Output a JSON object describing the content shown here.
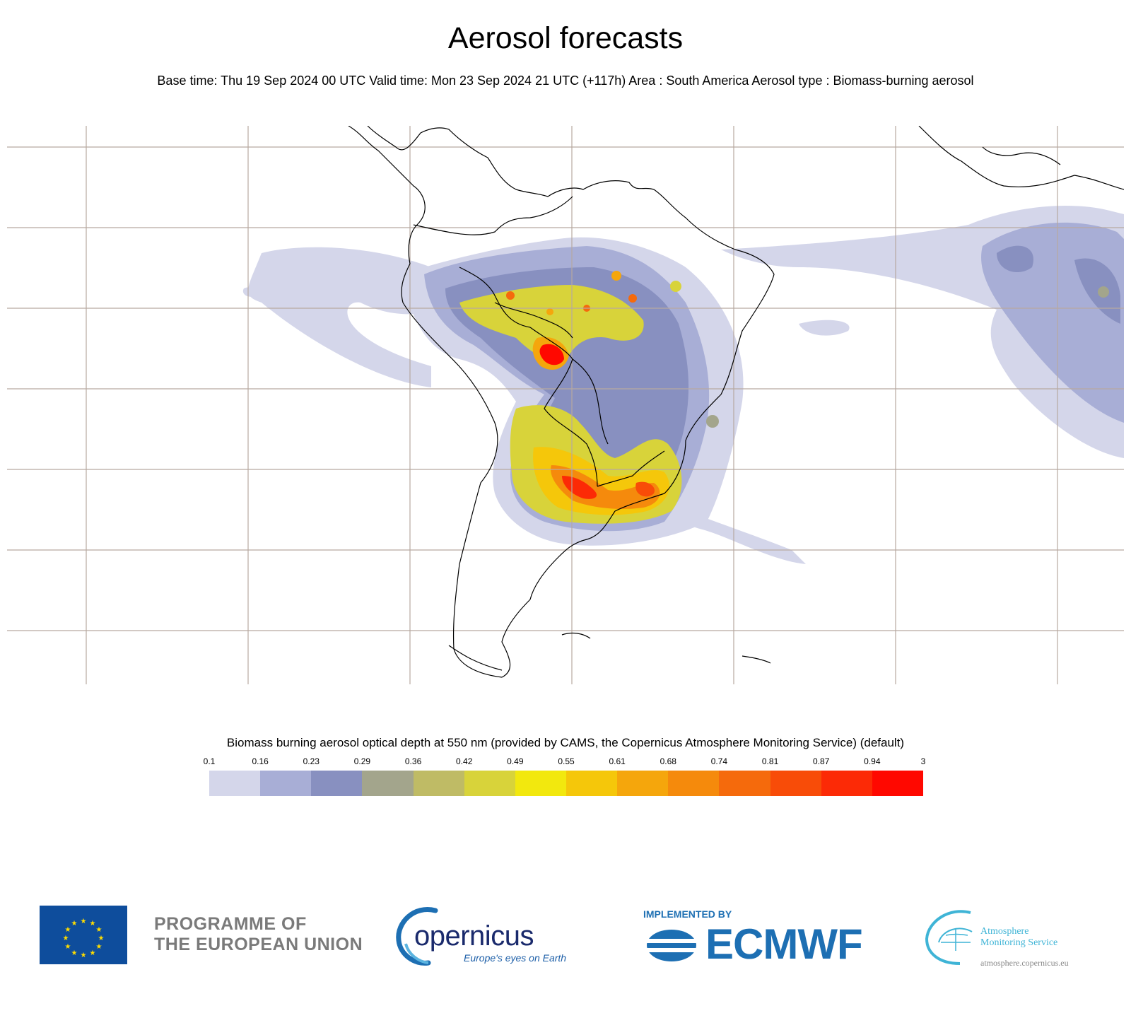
{
  "header": {
    "title": "Aerosol forecasts",
    "subtitle": "Base time: Thu 19 Sep 2024 00 UTC Valid time: Mon 23 Sep 2024 21 UTC (+117h) Area : South America Aerosol type : Biomass-burning aerosol"
  },
  "map": {
    "region": "South America",
    "variable": "Biomass-burning aerosol optical depth",
    "colors": {
      "land_outline": "#000000",
      "grid": "#b7a9a0"
    }
  },
  "legend": {
    "title": "Biomass burning aerosol optical depth at 550 nm (provided by CAMS, the Copernicus Atmosphere Monitoring Service) (default)",
    "ticks": [
      "0.1",
      "0.16",
      "0.23",
      "0.29",
      "0.36",
      "0.42",
      "0.49",
      "0.55",
      "0.61",
      "0.68",
      "0.74",
      "0.81",
      "0.87",
      "0.94",
      "3"
    ],
    "colors": [
      "#d4d6ea",
      "#a8aed6",
      "#8890c0",
      "#a3a58c",
      "#bfbb65",
      "#d8d33a",
      "#f2e80e",
      "#f5c70a",
      "#f5a60c",
      "#f58a0c",
      "#f56a0c",
      "#f84c08",
      "#fc2a06",
      "#ff0800"
    ]
  },
  "footer": {
    "eu_programme": [
      "PROGRAMME OF",
      "THE EUROPEAN UNION"
    ],
    "copernicus_name": "opernicus",
    "copernicus_tagline": "Europe's eyes on Earth",
    "ecmwf_implemented": "IMPLEMENTED BY",
    "ecmwf_name": "ECMWF",
    "ams_name": [
      "Atmosphere",
      "Monitoring Service"
    ],
    "ams_url": "atmosphere.copernicus.eu"
  }
}
